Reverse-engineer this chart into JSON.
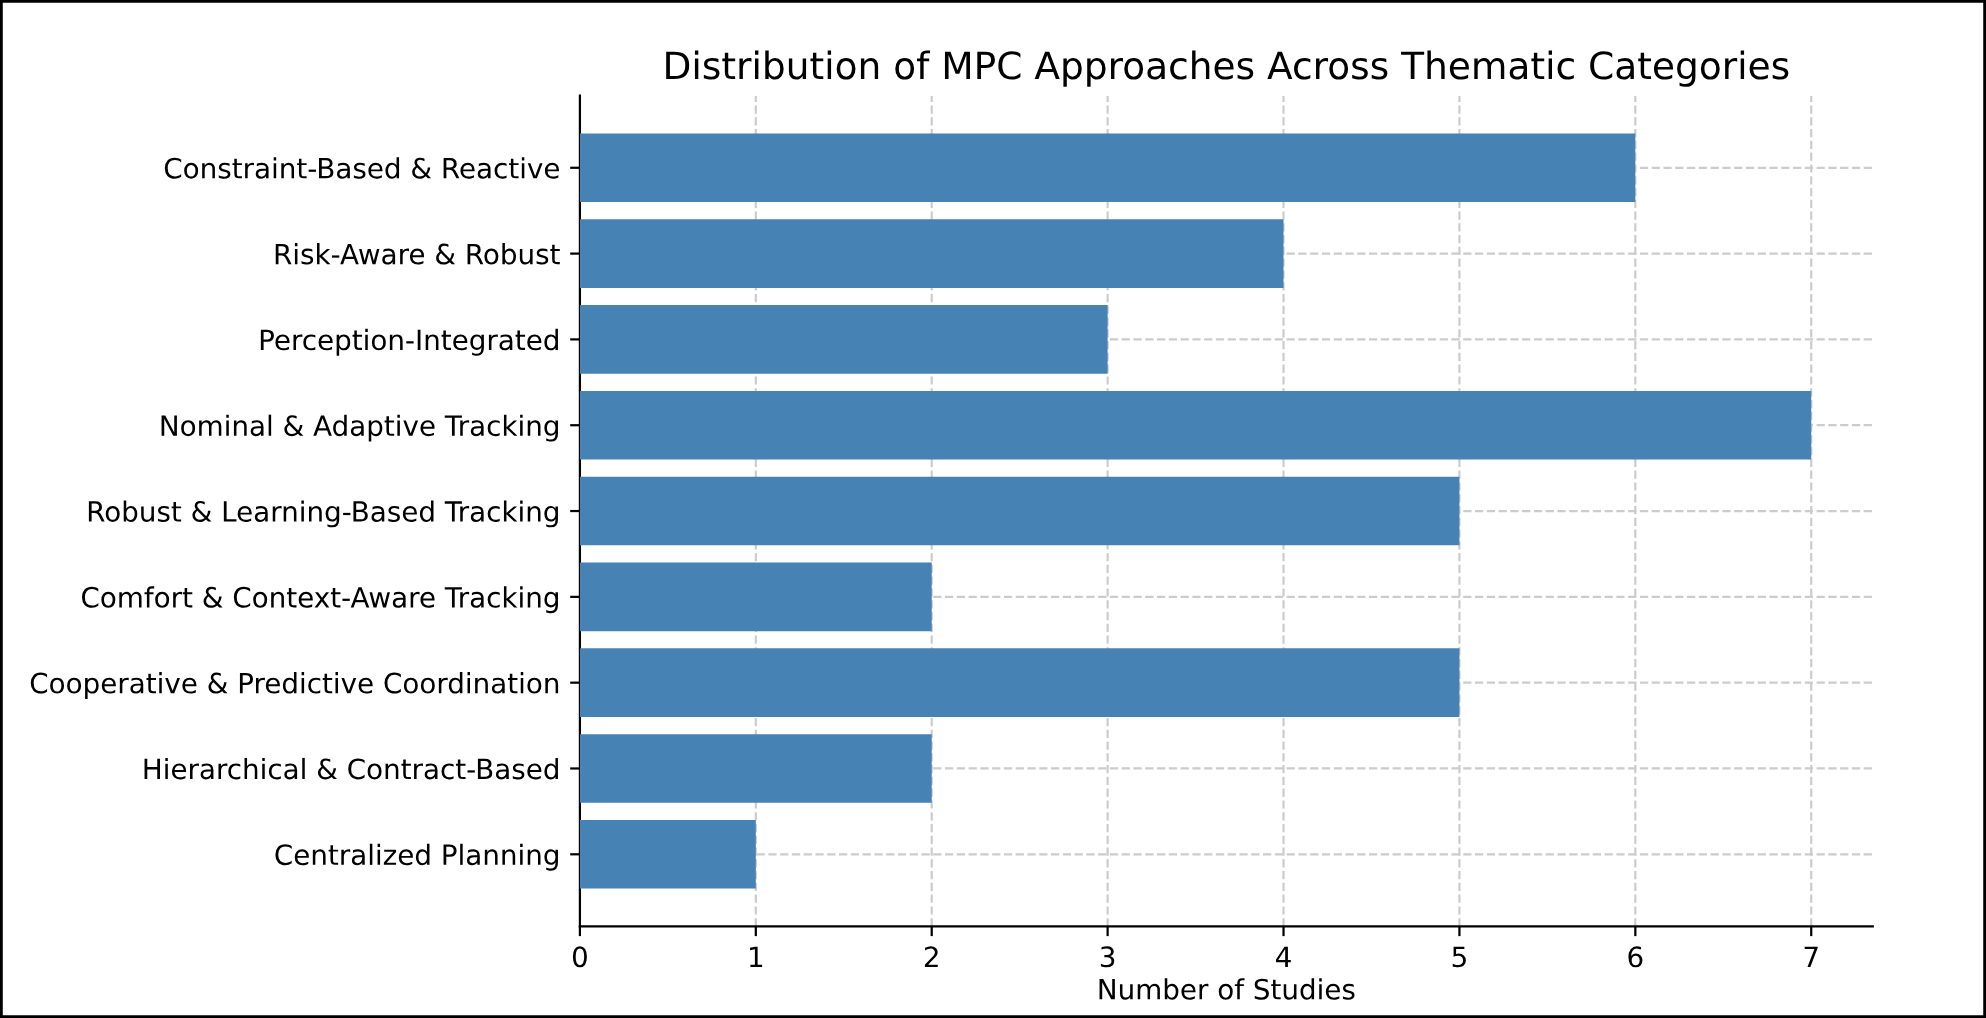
{
  "chart_data": {
    "type": "bar",
    "orientation": "horizontal",
    "title": "Distribution of MPC Approaches Across Thematic Categories",
    "xlabel": "Number of Studies",
    "categories": [
      "Constraint-Based & Reactive",
      "Risk-Aware & Robust",
      "Perception-Integrated",
      "Nominal & Adaptive Tracking",
      "Robust & Learning-Based Tracking",
      "Comfort & Context-Aware Tracking",
      "Cooperative & Predictive Coordination",
      "Hierarchical & Contract-Based",
      "Centralized Planning"
    ],
    "values": [
      6,
      4,
      3,
      7,
      5,
      2,
      5,
      2,
      1
    ],
    "color": "#4682b4",
    "xlim": [
      0,
      7.35
    ],
    "xticks": [
      0,
      1,
      2,
      3,
      4,
      5,
      6,
      7
    ],
    "grid": true,
    "line_style": "dashed"
  }
}
